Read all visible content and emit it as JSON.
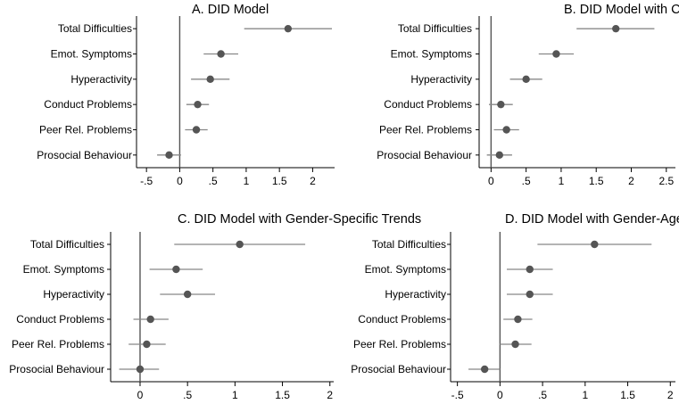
{
  "colors": {
    "ci": "#888888",
    "point": "#555555",
    "axis": "#000000",
    "zeroline": "#555555"
  },
  "chart_data": [
    {
      "type": "scatter",
      "title": "A. DID Model",
      "categories": [
        "Total Difficulties",
        "Emot. Symptoms",
        "Hyperactivity",
        "Conduct Problems",
        "Peer Rel. Problems",
        "Prosocial Behaviour"
      ],
      "x_ticks": [
        -0.5,
        0,
        0.5,
        1,
        1.5,
        2
      ],
      "x_tick_labels": [
        "-.5",
        "0",
        ".5",
        "1",
        "1.5",
        "2"
      ],
      "xlim": [
        -0.65,
        2.33
      ],
      "estimate": [
        1.63,
        0.62,
        0.46,
        0.27,
        0.25,
        -0.16
      ],
      "ci_low": [
        0.97,
        0.36,
        0.17,
        0.1,
        0.08,
        -0.34
      ],
      "ci_high": [
        2.29,
        0.88,
        0.75,
        0.44,
        0.42,
        0.02
      ]
    },
    {
      "type": "scatter",
      "title": "B. DID Model with Child FE",
      "categories": [
        "Total Difficulties",
        "Emot. Symptoms",
        "Hyperactivity",
        "Conduct Problems",
        "Peer Rel. Problems",
        "Prosocial Behaviour"
      ],
      "x_ticks": [
        0,
        0.5,
        1,
        1.5,
        2,
        2.5
      ],
      "x_tick_labels": [
        "0",
        ".5",
        "1",
        "1.5",
        "2",
        "2.5"
      ],
      "xlim": [
        -0.17,
        2.63
      ],
      "estimate": [
        1.78,
        0.93,
        0.5,
        0.14,
        0.22,
        0.12
      ],
      "ci_low": [
        1.22,
        0.68,
        0.27,
        -0.03,
        0.04,
        -0.06
      ],
      "ci_high": [
        2.33,
        1.18,
        0.73,
        0.31,
        0.4,
        0.3
      ]
    },
    {
      "type": "scatter",
      "title": "C. DID Model with Gender-Specific Trends",
      "categories": [
        "Total Difficulties",
        "Emot. Symptoms",
        "Hyperactivity",
        "Conduct Problems",
        "Peer Rel. Problems",
        "Prosocial Behaviour"
      ],
      "x_ticks": [
        0,
        0.5,
        1,
        1.5,
        2
      ],
      "x_tick_labels": [
        "0",
        ".5",
        "1",
        "1.5",
        "2"
      ],
      "xlim": [
        -0.31,
        2.04
      ],
      "estimate": [
        1.05,
        0.38,
        0.5,
        0.11,
        0.07,
        0.0
      ],
      "ci_low": [
        0.36,
        0.1,
        0.21,
        -0.07,
        -0.12,
        -0.22
      ],
      "ci_high": [
        1.74,
        0.66,
        0.79,
        0.3,
        0.27,
        0.2
      ]
    },
    {
      "type": "scatter",
      "title": "D. DID Model with Gender-Age Interaction",
      "categories": [
        "Total Difficulties",
        "Emot. Symptoms",
        "Hyperactivity",
        "Conduct Problems",
        "Peer Rel. Problems",
        "Prosocial Behaviour"
      ],
      "x_ticks": [
        -0.5,
        0,
        0.5,
        1,
        1.5,
        2
      ],
      "x_tick_labels": [
        "-.5",
        "0",
        ".5",
        "1",
        "1.5",
        "2"
      ],
      "xlim": [
        -0.58,
        2.06
      ],
      "estimate": [
        1.11,
        0.35,
        0.35,
        0.21,
        0.18,
        -0.18
      ],
      "ci_low": [
        0.44,
        0.08,
        0.08,
        0.04,
        0.0,
        -0.37
      ],
      "ci_high": [
        1.78,
        0.62,
        0.62,
        0.38,
        0.37,
        0.0
      ]
    }
  ]
}
